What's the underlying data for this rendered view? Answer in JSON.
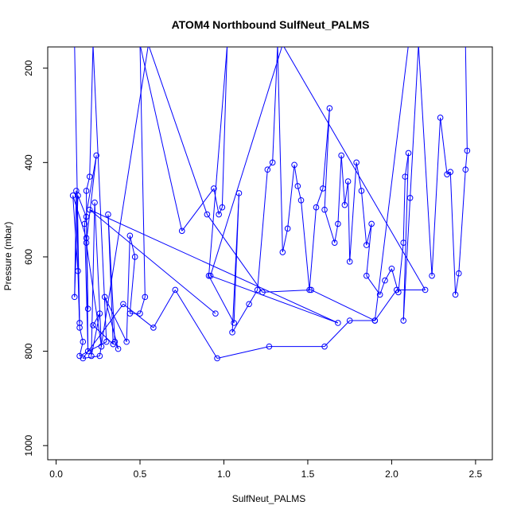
{
  "chart_data": {
    "type": "line",
    "title": "ATOM4 Northbound SulfNeut_PALMS",
    "xlabel": "SulfNeut_PALMS",
    "ylabel": "Pressure (mbar)",
    "xlim": [
      -0.05,
      2.6
    ],
    "ylim": [
      1030,
      155
    ],
    "y_reversed": true,
    "x_ticks": [
      0.0,
      0.5,
      1.0,
      1.5,
      2.0,
      2.5
    ],
    "x_tick_labels": [
      "0.0",
      "0.5",
      "1.0",
      "1.5",
      "2.0",
      "2.5"
    ],
    "y_ticks": [
      200,
      400,
      600,
      800,
      1000
    ],
    "y_tick_labels": [
      "200",
      "400",
      "600",
      "800",
      "1000"
    ],
    "grid": false,
    "legend": "none",
    "line_color": "#0000ff",
    "marker": "open-circle",
    "series": [
      {
        "points": [
          [
            0.11,
            150
          ],
          [
            0.14,
            740
          ],
          [
            0.12,
            460
          ],
          [
            0.11,
            685
          ],
          [
            0.13,
            470
          ],
          [
            0.18,
            515
          ],
          [
            0.19,
            710
          ],
          [
            0.18,
            560
          ],
          [
            0.1,
            470
          ],
          [
            0.13,
            630
          ],
          [
            0.14,
            750
          ],
          [
            0.16,
            780
          ],
          [
            0.14,
            810
          ],
          [
            0.3,
            780
          ],
          [
            0.22,
            150
          ],
          [
            0.2,
            430
          ],
          [
            0.18,
            460
          ],
          [
            0.19,
            800
          ],
          [
            0.17,
            530
          ],
          [
            0.24,
            385
          ],
          [
            0.18,
            570
          ],
          [
            0.27,
            790
          ],
          [
            0.23,
            485
          ],
          [
            0.21,
            810
          ],
          [
            0.26,
            720
          ],
          [
            0.22,
            745
          ],
          [
            0.34,
            785
          ],
          [
            0.31,
            510
          ],
          [
            0.35,
            780
          ],
          [
            0.37,
            795
          ],
          [
            0.29,
            685
          ],
          [
            0.42,
            780
          ],
          [
            0.44,
            555
          ],
          [
            0.47,
            600
          ],
          [
            0.44,
            720
          ],
          [
            0.5,
            720
          ],
          [
            0.53,
            685
          ],
          [
            0.5,
            150
          ],
          [
            0.75,
            545
          ],
          [
            0.94,
            455
          ],
          [
            0.97,
            510
          ],
          [
            0.99,
            495
          ],
          [
            1.02,
            150
          ],
          [
            0.91,
            640
          ],
          [
            1.06,
            740
          ],
          [
            1.09,
            465
          ],
          [
            1.05,
            760
          ],
          [
            1.15,
            700
          ],
          [
            1.2,
            670
          ],
          [
            1.26,
            415
          ],
          [
            1.29,
            400
          ],
          [
            1.32,
            150
          ],
          [
            1.35,
            590
          ],
          [
            1.38,
            540
          ],
          [
            1.42,
            405
          ],
          [
            1.44,
            450
          ],
          [
            1.46,
            480
          ],
          [
            1.51,
            670
          ],
          [
            1.55,
            495
          ],
          [
            1.59,
            455
          ],
          [
            1.63,
            285
          ],
          [
            1.6,
            500
          ],
          [
            1.66,
            570
          ],
          [
            1.68,
            530
          ],
          [
            1.7,
            385
          ],
          [
            1.72,
            490
          ],
          [
            1.74,
            440
          ],
          [
            1.75,
            610
          ],
          [
            1.79,
            400
          ],
          [
            1.82,
            460
          ],
          [
            1.85,
            575
          ],
          [
            1.88,
            530
          ],
          [
            1.85,
            640
          ],
          [
            1.93,
            680
          ],
          [
            1.96,
            650
          ],
          [
            2.0,
            625
          ],
          [
            2.04,
            675
          ],
          [
            2.07,
            570
          ],
          [
            2.08,
            430
          ],
          [
            2.1,
            380
          ],
          [
            2.07,
            735
          ],
          [
            2.11,
            475
          ],
          [
            2.16,
            150
          ],
          [
            2.24,
            640
          ],
          [
            2.29,
            305
          ],
          [
            2.33,
            425
          ],
          [
            2.35,
            420
          ],
          [
            2.38,
            680
          ],
          [
            2.4,
            635
          ],
          [
            2.44,
            415
          ],
          [
            2.45,
            375
          ],
          [
            2.44,
            150
          ],
          [
            2.1,
            150
          ],
          [
            1.9,
            735
          ],
          [
            1.75,
            735
          ],
          [
            1.6,
            790
          ],
          [
            1.27,
            790
          ],
          [
            0.96,
            815
          ],
          [
            0.71,
            670
          ],
          [
            0.58,
            750
          ],
          [
            0.4,
            700
          ],
          [
            0.16,
            815
          ],
          [
            0.26,
            810
          ],
          [
            0.55,
            150
          ],
          [
            0.9,
            510
          ],
          [
            1.23,
            675
          ],
          [
            1.52,
            670
          ],
          [
            1.9,
            735
          ],
          [
            2.03,
            670
          ],
          [
            2.2,
            670
          ],
          [
            1.35,
            150
          ],
          [
            0.92,
            640
          ],
          [
            1.68,
            740
          ],
          [
            0.2,
            500
          ],
          [
            0.95,
            720
          ]
        ]
      }
    ]
  }
}
